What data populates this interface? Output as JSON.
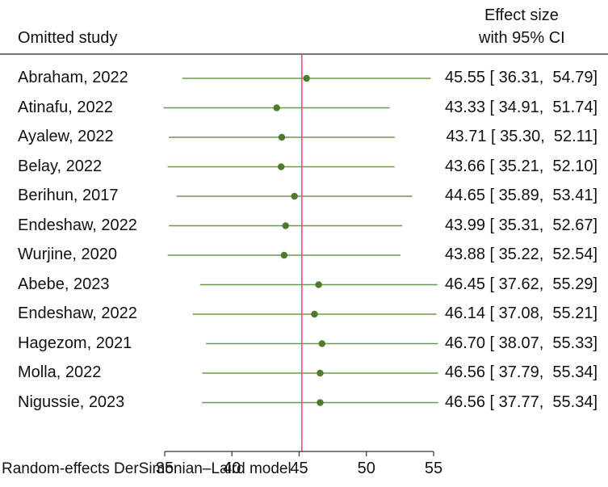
{
  "header": {
    "study_col": "Omitted study",
    "effect_line1": "Effect size",
    "effect_line2": "with 95% CI"
  },
  "footnote": "Random-effects DerSimonian–Laird model",
  "chart_data": {
    "type": "forest",
    "x_ticks": [
      "35",
      "40",
      "45",
      "50",
      "55"
    ],
    "xlim": [
      35,
      55
    ],
    "reference_x": 45.2,
    "marker_color": "#4e7a2d",
    "ci_line_color": "#6f9650",
    "reference_line_color": "#e0547a",
    "rows": [
      {
        "study": "Abraham, 2022",
        "effect": 45.55,
        "lower": 36.31,
        "upper": 54.79,
        "label": "45.55 [ 36.31,  54.79]"
      },
      {
        "study": "Atinafu, 2022",
        "effect": 43.33,
        "lower": 34.91,
        "upper": 51.74,
        "label": "43.33 [ 34.91,  51.74]"
      },
      {
        "study": "Ayalew, 2022",
        "effect": 43.71,
        "lower": 35.3,
        "upper": 52.11,
        "label": "43.71 [ 35.30,  52.11]"
      },
      {
        "study": "Belay, 2022",
        "effect": 43.66,
        "lower": 35.21,
        "upper": 52.1,
        "label": "43.66 [ 35.21,  52.10]"
      },
      {
        "study": "Berihun, 2017",
        "effect": 44.65,
        "lower": 35.89,
        "upper": 53.41,
        "label": "44.65 [ 35.89,  53.41]"
      },
      {
        "study": "Endeshaw, 2022",
        "effect": 43.99,
        "lower": 35.31,
        "upper": 52.67,
        "label": "43.99 [ 35.31,  52.67]"
      },
      {
        "study": "Wurjine, 2020",
        "effect": 43.88,
        "lower": 35.22,
        "upper": 52.54,
        "label": "43.88 [ 35.22,  52.54]"
      },
      {
        "study": "Abebe, 2023",
        "effect": 46.45,
        "lower": 37.62,
        "upper": 55.29,
        "label": "46.45 [ 37.62,  55.29]"
      },
      {
        "study": "Endeshaw, 2022",
        "effect": 46.14,
        "lower": 37.08,
        "upper": 55.21,
        "label": "46.14 [ 37.08,  55.21]"
      },
      {
        "study": "Hagezom, 2021",
        "effect": 46.7,
        "lower": 38.07,
        "upper": 55.33,
        "label": "46.70 [ 38.07,  55.33]"
      },
      {
        "study": "Molla, 2022",
        "effect": 46.56,
        "lower": 37.79,
        "upper": 55.34,
        "label": "46.56 [ 37.79,  55.34]"
      },
      {
        "study": "Nigussie, 2023",
        "effect": 46.56,
        "lower": 37.77,
        "upper": 55.34,
        "label": "46.56 [ 37.77,  55.34]"
      }
    ]
  }
}
